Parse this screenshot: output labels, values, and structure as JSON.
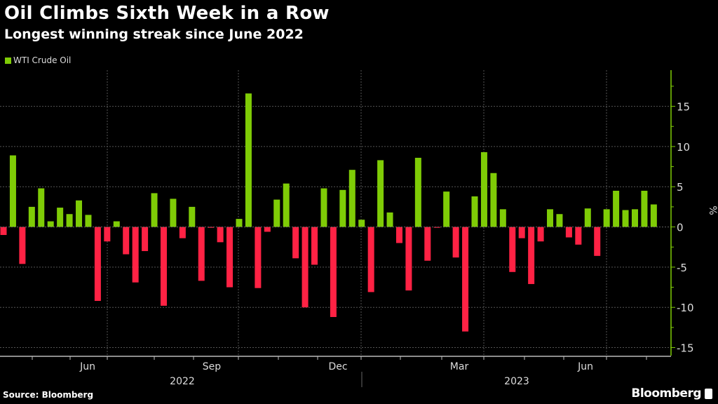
{
  "chart_data": {
    "type": "bar",
    "title": "Oil Climbs Sixth Week in a Row",
    "subtitle": "Longest winning streak since June 2022",
    "source": "Source: Bloomberg",
    "brand": "Bloomberg",
    "ylabel": "%",
    "ylim": [
      -16,
      19.5
    ],
    "yticks": [
      15,
      10,
      5,
      0,
      -5,
      -10,
      -15
    ],
    "grid": true,
    "legend_position": "top-left",
    "x_tick_labels": [
      "Jun",
      "Sep",
      "Dec",
      "Mar",
      "Jun"
    ],
    "x_year_labels": [
      "2022",
      "2023"
    ],
    "colors": {
      "positive": "#7fcc06",
      "negative": "#ff2244",
      "axis": "#7fcc06",
      "grid": "#555555"
    },
    "series": [
      {
        "name": "WTI Crude Oil",
        "categories": [
          "2022-04-08",
          "2022-04-15",
          "2022-04-22",
          "2022-04-29",
          "2022-05-06",
          "2022-05-13",
          "2022-05-20",
          "2022-05-27",
          "2022-06-03",
          "2022-06-10",
          "2022-06-17",
          "2022-06-24",
          "2022-07-01",
          "2022-07-08",
          "2022-07-15",
          "2022-07-22",
          "2022-07-29",
          "2022-08-05",
          "2022-08-12",
          "2022-08-19",
          "2022-08-26",
          "2022-09-02",
          "2022-09-09",
          "2022-09-16",
          "2022-09-23",
          "2022-09-30",
          "2022-10-07",
          "2022-10-14",
          "2022-10-21",
          "2022-10-28",
          "2022-11-04",
          "2022-11-11",
          "2022-11-18",
          "2022-11-25",
          "2022-12-02",
          "2022-12-09",
          "2022-12-16",
          "2022-12-23",
          "2022-12-30",
          "2023-01-06",
          "2023-01-13",
          "2023-01-20",
          "2023-01-27",
          "2023-02-03",
          "2023-02-10",
          "2023-02-17",
          "2023-02-24",
          "2023-03-03",
          "2023-03-10",
          "2023-03-17",
          "2023-03-24",
          "2023-03-31",
          "2023-04-07",
          "2023-04-14",
          "2023-04-21",
          "2023-04-28",
          "2023-05-05",
          "2023-05-12",
          "2023-05-19",
          "2023-05-26",
          "2023-06-02",
          "2023-06-09",
          "2023-06-16",
          "2023-06-23",
          "2023-06-30",
          "2023-07-07",
          "2023-07-14",
          "2023-07-21",
          "2023-07-28",
          "2023-08-04"
        ],
        "values": [
          -1.0,
          8.9,
          -4.6,
          2.5,
          4.8,
          0.7,
          2.4,
          1.6,
          3.3,
          1.5,
          -9.2,
          -1.8,
          0.7,
          -3.4,
          -6.9,
          -3.0,
          4.2,
          -9.8,
          3.5,
          -1.4,
          2.5,
          -6.7,
          -0.1,
          -1.9,
          -7.5,
          1.0,
          16.6,
          -7.6,
          -0.6,
          3.4,
          5.4,
          -3.9,
          -10.0,
          -4.7,
          4.8,
          -11.2,
          4.6,
          7.1,
          0.9,
          -8.1,
          8.3,
          1.8,
          -2.0,
          -7.9,
          8.6,
          -4.2,
          -0.1,
          4.4,
          -3.8,
          -13.0,
          3.8,
          9.3,
          6.7,
          2.2,
          -5.6,
          -1.4,
          -7.1,
          -1.8,
          2.2,
          1.6,
          -1.3,
          -2.2,
          2.3,
          -3.6,
          2.2,
          4.5,
          2.1,
          2.2,
          4.5,
          2.8
        ]
      }
    ]
  }
}
